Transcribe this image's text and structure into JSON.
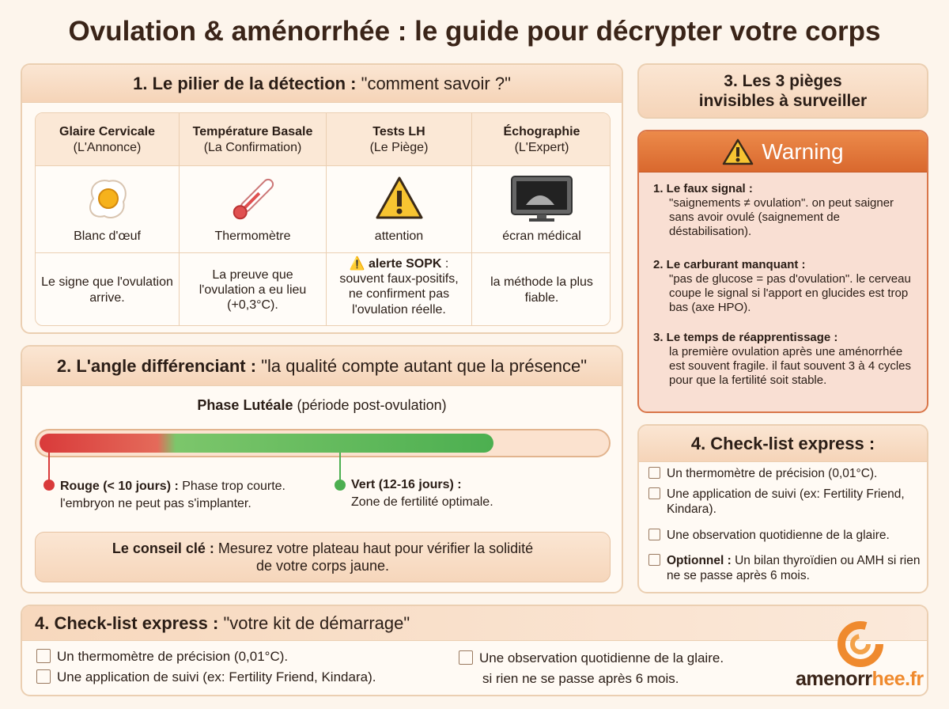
{
  "title": "Ovulation & aménorrhée : le guide pour décrypter votre corps",
  "detection": {
    "heading": {
      "label": "1. Le pilier de la détection :",
      "text": "\"comment savoir ?\""
    },
    "columns": [
      {
        "title": "Glaire Cervicale",
        "subtitle": "(L'Annonce)",
        "icon_label": "Blanc d'œuf",
        "description": "Le signe que l'ovulation arrive."
      },
      {
        "title": "Température Basale",
        "subtitle": "(La Confirmation)",
        "icon_label": "Thermomètre",
        "description": "La preuve que l'ovulation a eu lieu (+0,3°C)."
      },
      {
        "title": "Tests LH",
        "subtitle": "(Le Piège)",
        "icon_label": "attention",
        "alert": "alerte SOPK",
        "description": ": souvent faux-positifs, ne confirment pas l'ovulation réelle."
      },
      {
        "title": "Échographie",
        "subtitle": "(L'Expert)",
        "icon_label": "écran médical",
        "description": "la méthode la plus fiable."
      }
    ]
  },
  "luteal": {
    "heading": {
      "label": "2. L'angle différenciant :",
      "text": "\"la qualité compte autant que la présence\""
    },
    "phase": {
      "label": "Phase Lutéale",
      "text": "(période post-ovulation)"
    },
    "red": {
      "label": "Rouge (< 10 jours) :",
      "text": "Phase trop courte.",
      "detail": "l'embryon ne peut pas s'implanter."
    },
    "green": {
      "label": "Vert (12-16 jours) :",
      "text": "Zone de fertilité optimale."
    },
    "tip": {
      "label": "Le conseil clé :",
      "text": "Mesurez votre plateau haut pour vérifier la solidité de votre corps jaune."
    }
  },
  "traps": {
    "heading": "3. Les 3 pièges invisibles à surveiller",
    "warning": "Warning",
    "items": [
      {
        "title": "1. Le faux signal :",
        "text": "\"saignements ≠ ovulation\". on peut saigner sans avoir ovulé (saignement de déstabilisation)."
      },
      {
        "title": "2. Le carburant manquant :",
        "text": "\"pas de glucose = pas d'ovulation\". le cerveau coupe le signal si l'apport en glucides est trop bas (axe HPO)."
      },
      {
        "title": "3. Le temps de réapprentissage :",
        "text": "la première ovulation après une aménorrhée est souvent fragile. il faut souvent 3 à 4 cycles pour que la fertilité soit stable."
      }
    ]
  },
  "checklist_side": {
    "heading": "4. Check-list express :",
    "items": [
      "Un thermomètre de précision (0,01°C).",
      "Une application de suivi (ex: Fertility Friend, Kindara).",
      "Une observation quotidienne de la glaire."
    ],
    "optional": {
      "label": "Optionnel :",
      "text": "Un bilan thyroïdien ou AMH si rien ne se passe après 6 mois."
    }
  },
  "checklist_bottom": {
    "heading": {
      "label": "4. Check-list express :",
      "text": "\"votre kit de démarrage\""
    },
    "left_items": [
      "Un thermomètre de précision (0,01°C).",
      "Une application de suivi (ex: Fertility Friend, Kindara)."
    ],
    "right_items": [
      "Une observation quotidienne de la glaire.",
      "si rien ne se passe après 6 mois."
    ]
  },
  "logo": {
    "part1": "amenorr",
    "part2": "hee.fr"
  }
}
